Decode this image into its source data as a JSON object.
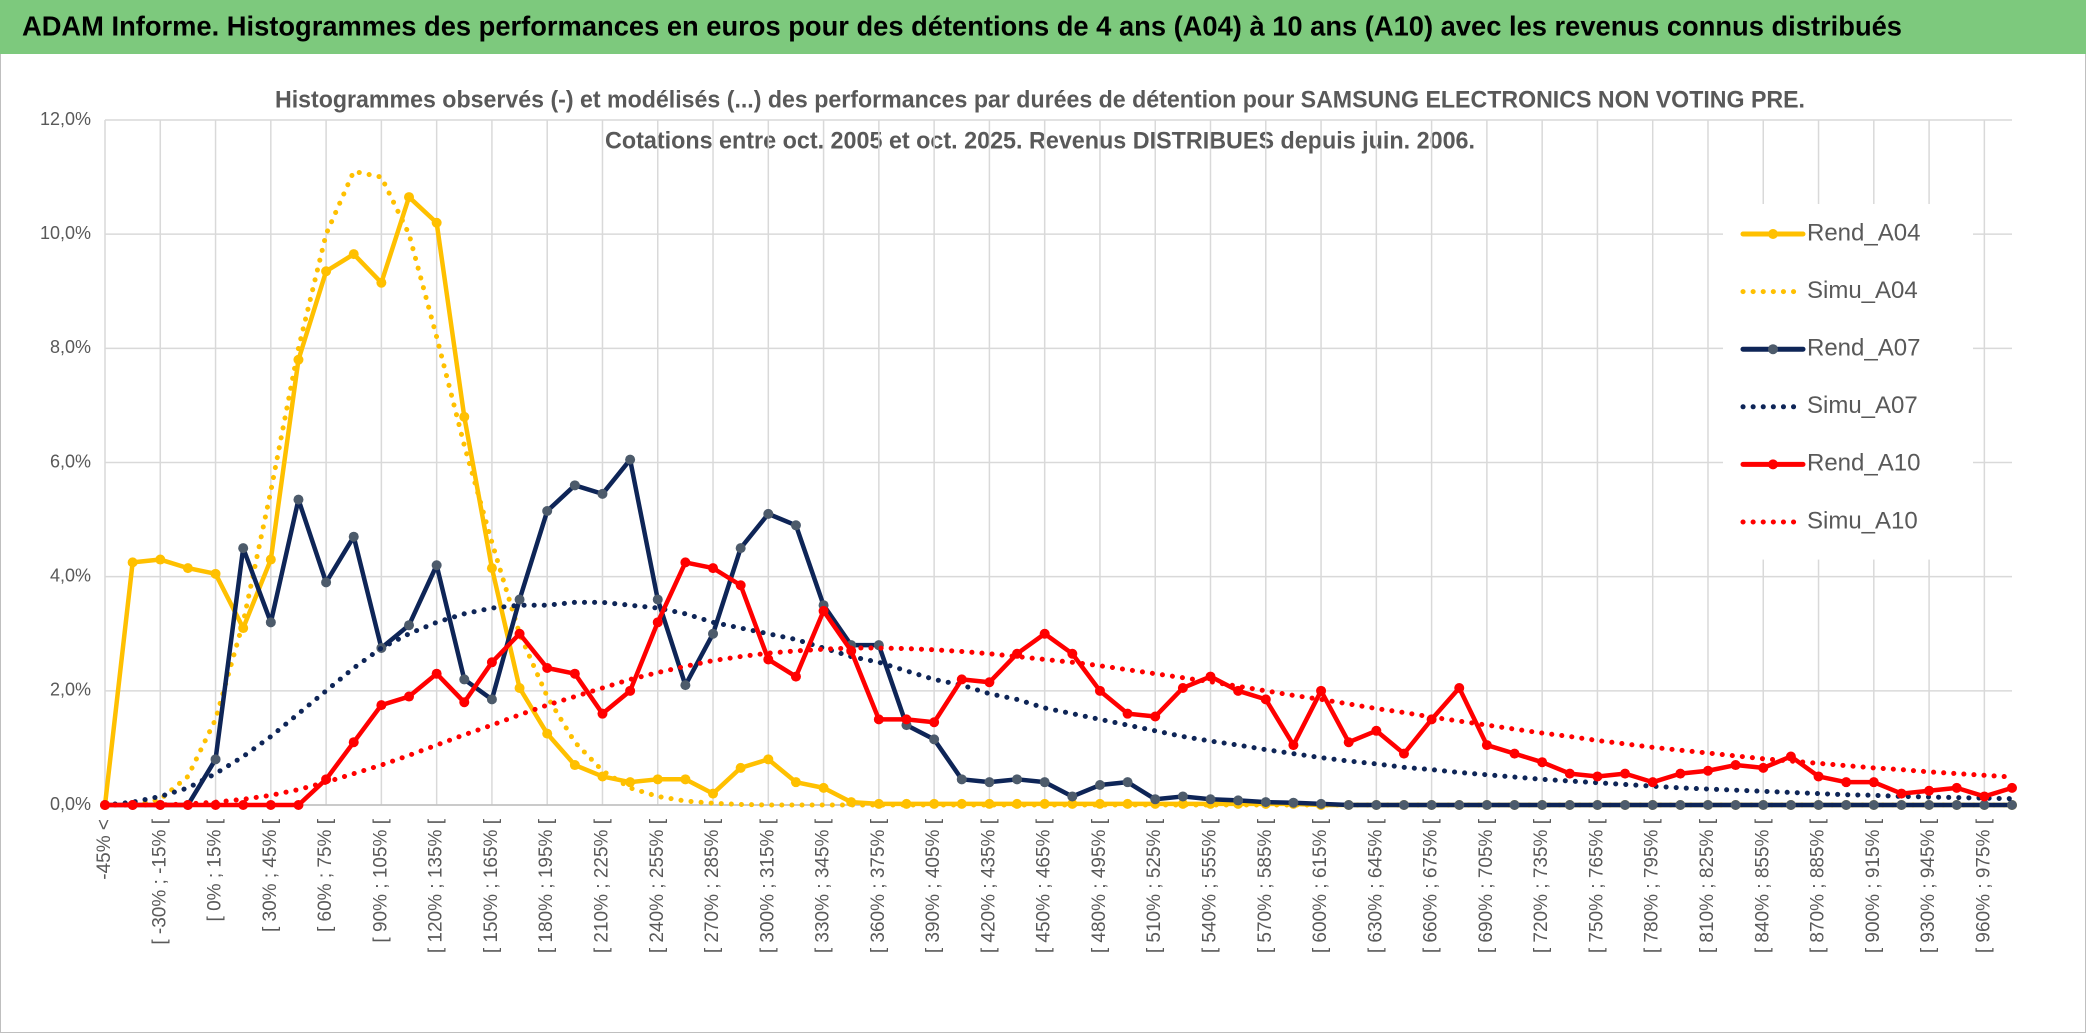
{
  "chart_data": {
    "type": "line",
    "title": "ADAM Informe. Histogrammes des performances en euros pour des détentions de 4 ans (A04) à 10 ans (A10) avec les revenus connus distribués",
    "subtitle": [
      "Histogrammes observés (-) et modélisés (...) des performances par durées de détention pour SAMSUNG ELECTRONICS NON VOTING PRE.",
      "Cotations entre oct. 2005 et oct. 2025. Revenus DISTRIBUES depuis juin. 2006."
    ],
    "categories": [
      "-45% <",
      null,
      "[ -30% ; -15% [",
      null,
      "[ 0% ; 15% [",
      null,
      "[ 30% ; 45% [",
      null,
      "[ 60% ; 75% [",
      null,
      "[ 90% ; 105% [",
      null,
      "[ 120% ; 135% [",
      null,
      "[ 150% ; 165% [",
      null,
      "[ 180% ; 195% [",
      null,
      "[ 210% ; 225% [",
      null,
      "[ 240% ; 255% [",
      null,
      "[ 270% ; 285% [",
      null,
      "[ 300% ; 315% [",
      null,
      "[ 330% ; 345% [",
      null,
      "[ 360% ; 375% [",
      null,
      "[ 390% ; 405% [",
      null,
      "[ 420% ; 435% [",
      null,
      "[ 450% ; 465% [",
      null,
      "[ 480% ; 495% [",
      null,
      "[ 510% ; 525% [",
      null,
      "[ 540% ; 555% [",
      null,
      "[ 570% ; 585% [",
      null,
      "[ 600% ; 615% [",
      null,
      "[ 630% ; 645% [",
      null,
      "[ 660% ; 675% [",
      null,
      "[ 690% ; 705% [",
      null,
      "[ 720% ; 735% [",
      null,
      "[ 750% ; 765% [",
      null,
      "[ 780% ; 795% [",
      null,
      "[ 810% ; 825% [",
      null,
      "[ 840% ; 855% [",
      null,
      "[ 870% ; 885% [",
      null,
      "[ 900% ; 915% [",
      null,
      "[ 930% ; 945% [",
      null,
      "[ 960% ; 975% [",
      null
    ],
    "ylim": [
      0,
      12
    ],
    "yticks": [
      {
        "value": 0,
        "label": "0,0%"
      },
      {
        "value": 2,
        "label": "2,0%"
      },
      {
        "value": 4,
        "label": "4,0%"
      },
      {
        "value": 6,
        "label": "6,0%"
      },
      {
        "value": 8,
        "label": "8,0%"
      },
      {
        "value": 10,
        "label": "10,0%"
      },
      {
        "value": 12,
        "label": "12,0%"
      }
    ],
    "grid": true,
    "legend": "right",
    "series": [
      {
        "name": "Rend_A04",
        "color": "#FFC000",
        "style": "solid",
        "markers": true,
        "marker_color": "#FFC000",
        "values": [
          0,
          4.25,
          4.3,
          4.15,
          4.05,
          3.1,
          4.3,
          7.8,
          9.35,
          9.65,
          9.15,
          10.65,
          10.2,
          6.8,
          4.15,
          2.05,
          1.25,
          0.7,
          0.5,
          0.4,
          0.45,
          0.45,
          0.2,
          0.65,
          0.8,
          0.4,
          0.3,
          0.05,
          0.02,
          0.02,
          0.02,
          0.02,
          0.02,
          0.02,
          0.02,
          0.02,
          0.02,
          0.02,
          0.02,
          0.02,
          0.02,
          0.02,
          0.02,
          0.02,
          0,
          0,
          0,
          0,
          0,
          0,
          0,
          0,
          0,
          0,
          0,
          0,
          0,
          0,
          0,
          0,
          0,
          0,
          0,
          0,
          0,
          0,
          0,
          0,
          0,
          0
        ]
      },
      {
        "name": "Simu_A04",
        "color": "#FFC000",
        "style": "dotted",
        "markers": false,
        "values": [
          0,
          0,
          0.1,
          0.5,
          1.5,
          3.2,
          5.5,
          8,
          10,
          11.1,
          11,
          10,
          8.2,
          6.3,
          4.6,
          3,
          1.9,
          1.1,
          0.6,
          0.3,
          0.15,
          0.07,
          0.03,
          0.01,
          0,
          0,
          0,
          0,
          0,
          0,
          0,
          0,
          0,
          0,
          0,
          0,
          0,
          0,
          0,
          0,
          0,
          0,
          0,
          0,
          0,
          0,
          0,
          0,
          0,
          0,
          0,
          0,
          0,
          0,
          0,
          0,
          0,
          0,
          0,
          0,
          0,
          0,
          0,
          0,
          0,
          0,
          0,
          0,
          0,
          0
        ]
      },
      {
        "name": "Rend_A07",
        "color": "#0E2557",
        "style": "solid",
        "markers": true,
        "marker_color": "#4D5B6B",
        "values": [
          0,
          0,
          0,
          0,
          0.8,
          4.5,
          3.2,
          5.35,
          3.9,
          4.7,
          2.75,
          3.15,
          4.2,
          2.2,
          1.85,
          3.6,
          5.15,
          5.6,
          5.45,
          6.05,
          3.6,
          2.1,
          3,
          4.5,
          5.1,
          4.9,
          3.5,
          2.8,
          2.8,
          1.4,
          1.15,
          0.45,
          0.4,
          0.45,
          0.4,
          0.15,
          0.35,
          0.4,
          0.1,
          0.15,
          0.1,
          0.08,
          0.05,
          0.04,
          0.02,
          0,
          0,
          0,
          0,
          0,
          0,
          0,
          0,
          0,
          0,
          0,
          0,
          0,
          0,
          0,
          0,
          0,
          0,
          0,
          0,
          0,
          0,
          0,
          0,
          0
        ]
      },
      {
        "name": "Simu_A07",
        "color": "#0E2557",
        "style": "dotted",
        "markers": false,
        "values": [
          0,
          0.05,
          0.15,
          0.3,
          0.55,
          0.85,
          1.2,
          1.6,
          2,
          2.4,
          2.75,
          3,
          3.2,
          3.35,
          3.45,
          3.5,
          3.5,
          3.55,
          3.55,
          3.5,
          3.45,
          3.35,
          3.2,
          3.1,
          3,
          2.9,
          2.75,
          2.6,
          2.5,
          2.35,
          2.2,
          2.1,
          1.95,
          1.85,
          1.7,
          1.6,
          1.5,
          1.4,
          1.3,
          1.2,
          1.12,
          1.05,
          0.97,
          0.9,
          0.83,
          0.77,
          0.72,
          0.66,
          0.62,
          0.57,
          0.53,
          0.49,
          0.45,
          0.42,
          0.39,
          0.36,
          0.33,
          0.3,
          0.28,
          0.26,
          0.24,
          0.22,
          0.2,
          0.18,
          0.17,
          0.15,
          0.14,
          0.13,
          0.12,
          0.11
        ]
      },
      {
        "name": "Rend_A10",
        "color": "#FF0000",
        "style": "solid",
        "markers": true,
        "marker_color": "#FF0000",
        "values": [
          0,
          0,
          0,
          0,
          0,
          0,
          0,
          0,
          0.45,
          1.1,
          1.75,
          1.9,
          2.3,
          1.8,
          2.5,
          3,
          2.4,
          2.3,
          1.6,
          2,
          3.2,
          4.25,
          4.15,
          3.85,
          2.55,
          2.25,
          3.4,
          2.7,
          1.5,
          1.5,
          1.45,
          2.2,
          2.15,
          2.65,
          3,
          2.65,
          2,
          1.6,
          1.55,
          2.05,
          2.25,
          2,
          1.85,
          1.05,
          2,
          1.1,
          1.3,
          0.9,
          1.5,
          2.05,
          1.05,
          0.9,
          0.75,
          0.55,
          0.5,
          0.55,
          0.4,
          0.55,
          0.6,
          0.7,
          0.65,
          0.85,
          0.5,
          0.4,
          0.4,
          0.2,
          0.25,
          0.3,
          0.15,
          0.3
        ]
      },
      {
        "name": "Simu_A10",
        "color": "#FF0000",
        "style": "dotted",
        "markers": false,
        "values": [
          0,
          0,
          0,
          0.02,
          0.05,
          0.1,
          0.17,
          0.27,
          0.4,
          0.55,
          0.7,
          0.87,
          1.05,
          1.23,
          1.4,
          1.58,
          1.75,
          1.9,
          2.05,
          2.2,
          2.32,
          2.43,
          2.53,
          2.6,
          2.66,
          2.7,
          2.73,
          2.75,
          2.75,
          2.74,
          2.72,
          2.69,
          2.65,
          2.6,
          2.55,
          2.5,
          2.44,
          2.37,
          2.3,
          2.23,
          2.16,
          2.08,
          2,
          1.92,
          1.85,
          1.77,
          1.69,
          1.62,
          1.54,
          1.47,
          1.4,
          1.33,
          1.26,
          1.2,
          1.13,
          1.07,
          1.01,
          0.96,
          0.91,
          0.86,
          0.81,
          0.77,
          0.73,
          0.69,
          0.65,
          0.62,
          0.58,
          0.55,
          0.52,
          0.49
        ]
      }
    ]
  }
}
